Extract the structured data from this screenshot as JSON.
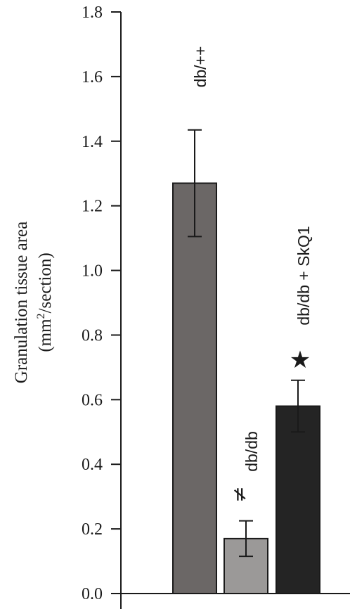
{
  "chart_data": {
    "type": "bar",
    "ylabel_line1": "Granulation tissue area",
    "ylabel_line2_pre": "(mm",
    "ylabel_line2_sup": "2",
    "ylabel_line2_post": "/section)",
    "ylim": [
      0,
      1.8
    ],
    "yticks": [
      0.0,
      0.2,
      0.4,
      0.6,
      0.8,
      1.0,
      1.2,
      1.4,
      1.6,
      1.8
    ],
    "yticks_text": [
      "0.0",
      "0.2",
      "0.4",
      "0.6",
      "0.8",
      "1.0",
      "1.2",
      "1.4",
      "1.6",
      "1.8"
    ],
    "categories": [
      "db/++",
      "db/db",
      "db/db + SkQ1"
    ],
    "values": [
      1.27,
      0.17,
      0.58
    ],
    "errors": [
      0.165,
      0.055,
      0.08
    ],
    "colors": [
      "#6b6766",
      "#9b9998",
      "#242424"
    ],
    "significance_markers": [
      {
        "category_index": 1,
        "symbol": "≠"
      },
      {
        "category_index": 2,
        "symbol": "★"
      }
    ]
  }
}
